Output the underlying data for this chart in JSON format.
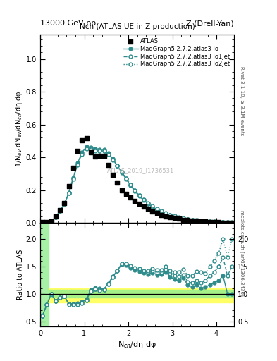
{
  "title_top_left": "13000 GeV pp",
  "title_top_right": "Z (Drell-Yan)",
  "plot_title": "Nch (ATLAS UE in Z production)",
  "ylabel_main": "1/N$_{ev}$ dN$_{ev}$/dN$_{ch}$/dη dφ",
  "ylabel_ratio": "Ratio to ATLAS",
  "xlabel": "N$_{ch}$/dη dφ",
  "right_label": "Rivet 3.1.10, ≥ 3.1M events",
  "watermark": "ATLAS_2019_I1736531",
  "arxiv_label": "mcplots.cern.ch [arXiv:1306.3436]",
  "atlas_x": [
    0.05,
    0.15,
    0.25,
    0.35,
    0.45,
    0.55,
    0.65,
    0.75,
    0.85,
    0.95,
    1.05,
    1.15,
    1.25,
    1.35,
    1.45,
    1.55,
    1.65,
    1.75,
    1.85,
    1.95,
    2.05,
    2.15,
    2.25,
    2.35,
    2.45,
    2.55,
    2.65,
    2.75,
    2.85,
    2.95,
    3.05,
    3.15,
    3.25,
    3.35,
    3.45,
    3.55,
    3.65,
    3.75,
    3.85,
    3.95,
    4.05,
    4.15,
    4.25,
    4.35
  ],
  "atlas_y": [
    0.005,
    0.005,
    0.01,
    0.04,
    0.08,
    0.12,
    0.225,
    0.335,
    0.44,
    0.505,
    0.515,
    0.43,
    0.405,
    0.41,
    0.41,
    0.355,
    0.295,
    0.245,
    0.2,
    0.175,
    0.155,
    0.135,
    0.115,
    0.1,
    0.085,
    0.07,
    0.06,
    0.05,
    0.04,
    0.035,
    0.03,
    0.025,
    0.02,
    0.018,
    0.015,
    0.012,
    0.01,
    0.008,
    0.006,
    0.005,
    0.004,
    0.003,
    0.003,
    0.002
  ],
  "mc_x": [
    0.05,
    0.15,
    0.25,
    0.35,
    0.45,
    0.55,
    0.65,
    0.75,
    0.85,
    0.95,
    1.05,
    1.15,
    1.25,
    1.35,
    1.45,
    1.55,
    1.65,
    1.75,
    1.85,
    1.95,
    2.05,
    2.15,
    2.25,
    2.35,
    2.45,
    2.55,
    2.65,
    2.75,
    2.85,
    2.95,
    3.05,
    3.15,
    3.25,
    3.35,
    3.45,
    3.55,
    3.65,
    3.75,
    3.85,
    3.95,
    4.05,
    4.15,
    4.25,
    4.35
  ],
  "lo_y": [
    0.003,
    0.004,
    0.01,
    0.035,
    0.075,
    0.115,
    0.185,
    0.275,
    0.365,
    0.43,
    0.465,
    0.462,
    0.452,
    0.45,
    0.448,
    0.425,
    0.39,
    0.35,
    0.308,
    0.268,
    0.228,
    0.194,
    0.163,
    0.138,
    0.116,
    0.097,
    0.081,
    0.068,
    0.056,
    0.046,
    0.038,
    0.031,
    0.026,
    0.021,
    0.017,
    0.014,
    0.011,
    0.009,
    0.007,
    0.006,
    0.005,
    0.004,
    0.003,
    0.002
  ],
  "lo1jet_y": [
    0.003,
    0.004,
    0.01,
    0.035,
    0.075,
    0.115,
    0.183,
    0.27,
    0.358,
    0.422,
    0.456,
    0.453,
    0.443,
    0.441,
    0.441,
    0.419,
    0.387,
    0.35,
    0.31,
    0.272,
    0.232,
    0.197,
    0.167,
    0.141,
    0.119,
    0.1,
    0.084,
    0.07,
    0.058,
    0.048,
    0.04,
    0.033,
    0.027,
    0.022,
    0.018,
    0.015,
    0.012,
    0.01,
    0.008,
    0.007,
    0.006,
    0.005,
    0.004,
    0.003
  ],
  "lo2jet_y": [
    0.003,
    0.004,
    0.01,
    0.035,
    0.075,
    0.115,
    0.182,
    0.268,
    0.355,
    0.419,
    0.453,
    0.45,
    0.44,
    0.438,
    0.439,
    0.417,
    0.385,
    0.349,
    0.31,
    0.273,
    0.234,
    0.199,
    0.169,
    0.143,
    0.121,
    0.102,
    0.086,
    0.072,
    0.06,
    0.05,
    0.042,
    0.035,
    0.029,
    0.024,
    0.02,
    0.017,
    0.014,
    0.011,
    0.009,
    0.008,
    0.007,
    0.006,
    0.005,
    0.004
  ],
  "teal_color": "#2E8B8B",
  "atlas_color": "#000000",
  "green_band_color": "#90EE90",
  "yellow_band_color": "#FFFF66",
  "xlim": [
    0,
    4.4
  ],
  "ylim_main": [
    0.0,
    1.15
  ],
  "main_yticks": [
    0.0,
    0.2,
    0.4,
    0.6,
    0.8,
    1.0
  ],
  "ylim_ratio": [
    0.4,
    2.3
  ],
  "ratio_yticks": [
    0.5,
    1.0,
    1.5,
    2.0
  ],
  "green_band_xmax": 0.2,
  "yellow_band_ylow": 0.85,
  "yellow_band_yhigh": 1.1,
  "inner_green_ylow": 0.93,
  "inner_green_yhigh": 1.07
}
